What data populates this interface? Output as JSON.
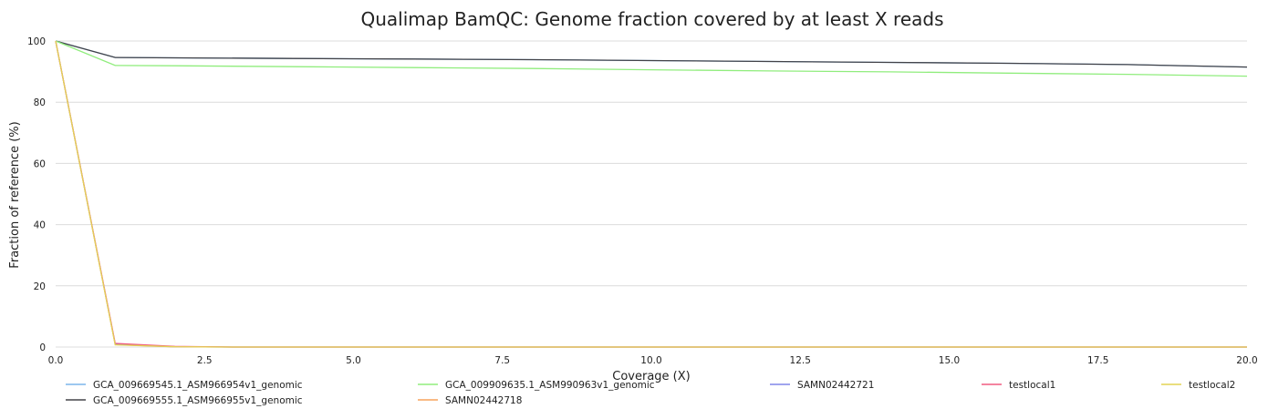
{
  "chart_data": {
    "type": "line",
    "title": "Qualimap BamQC: Genome fraction covered by at least X reads",
    "xlabel": "Coverage (X)",
    "ylabel": "Fraction of reference (%)",
    "xlim": [
      0,
      20
    ],
    "ylim": [
      0,
      100
    ],
    "x_ticks": [
      "0.0",
      "2.5",
      "5.0",
      "7.5",
      "10.0",
      "12.5",
      "15.0",
      "17.5",
      "20.0"
    ],
    "y_ticks": [
      "0",
      "20",
      "40",
      "60",
      "80",
      "100"
    ],
    "grid": true,
    "legend_position": "bottom",
    "series": [
      {
        "name": "GCA_009669545.1_ASM966954v1_genomic",
        "color": "#7cb5ec",
        "x": [
          0,
          1,
          2,
          4,
          6,
          8,
          10,
          12,
          14,
          16,
          18,
          20
        ],
        "y": [
          100,
          94.6,
          94.5,
          94.3,
          94.1,
          93.9,
          93.6,
          93.3,
          93.0,
          92.7,
          92.3,
          91.5
        ]
      },
      {
        "name": "GCA_009669555.1_ASM966955v1_genomic",
        "color": "#434348",
        "x": [
          0,
          1,
          2,
          4,
          6,
          8,
          10,
          12,
          14,
          16,
          18,
          20
        ],
        "y": [
          100,
          94.6,
          94.5,
          94.3,
          94.1,
          93.9,
          93.6,
          93.3,
          93.0,
          92.7,
          92.3,
          91.5
        ]
      },
      {
        "name": "GCA_009909635.1_ASM990963v1_genomic",
        "color": "#90ed7d",
        "x": [
          0,
          1,
          2,
          4,
          6,
          8,
          10,
          12,
          14,
          16,
          18,
          20
        ],
        "y": [
          100,
          92.0,
          91.9,
          91.6,
          91.3,
          91.0,
          90.6,
          90.2,
          89.9,
          89.5,
          89.1,
          88.5
        ]
      },
      {
        "name": "SAMN02442718",
        "color": "#f7a35c",
        "x": [
          0,
          1,
          2,
          3,
          20
        ],
        "y": [
          100,
          0.8,
          0.1,
          0,
          0
        ]
      },
      {
        "name": "SAMN02442721",
        "color": "#8085e9",
        "x": [
          0,
          1,
          2,
          3,
          20
        ],
        "y": [
          100,
          0.9,
          0.1,
          0,
          0
        ]
      },
      {
        "name": "testlocal1",
        "color": "#f15c80",
        "x": [
          0,
          1,
          2,
          3,
          20
        ],
        "y": [
          100,
          1.2,
          0.2,
          0,
          0
        ]
      },
      {
        "name": "testlocal2",
        "color": "#e4d354",
        "x": [
          0,
          1,
          2,
          3,
          20
        ],
        "y": [
          100,
          0.7,
          0.1,
          0,
          0
        ]
      }
    ]
  }
}
